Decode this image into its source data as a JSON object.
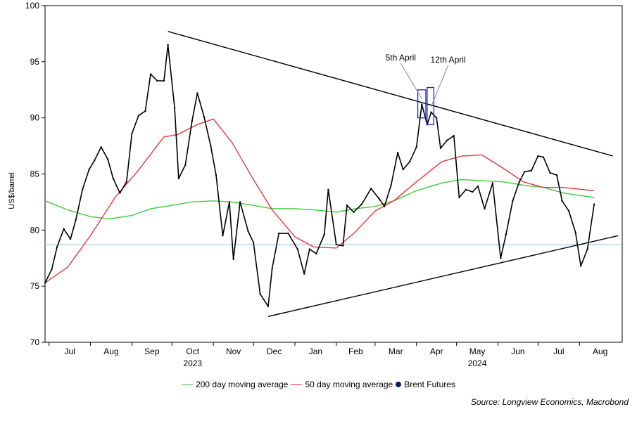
{
  "chart_data": {
    "type": "line",
    "ylabel": "US$/barrel",
    "ylim": [
      70,
      100
    ],
    "yticks": [
      70,
      75,
      80,
      85,
      90,
      95,
      100
    ],
    "x_range": [
      "2023-06-28",
      "2024-09-02"
    ],
    "month_ticks": [
      {
        "label": "Jul",
        "date": "2023-07-01"
      },
      {
        "label": "Aug",
        "date": "2023-08-01"
      },
      {
        "label": "Sep",
        "date": "2023-09-01"
      },
      {
        "label": "Oct",
        "date": "2023-10-01"
      },
      {
        "label": "Nov",
        "date": "2023-11-01"
      },
      {
        "label": "Dec",
        "date": "2023-12-01"
      },
      {
        "label": "Jan",
        "date": "2024-01-01"
      },
      {
        "label": "Feb",
        "date": "2024-02-01"
      },
      {
        "label": "Mar",
        "date": "2024-03-01"
      },
      {
        "label": "Apr",
        "date": "2024-04-01"
      },
      {
        "label": "May",
        "date": "2024-05-01"
      },
      {
        "label": "Jun",
        "date": "2024-06-01"
      },
      {
        "label": "Jul",
        "date": "2024-07-01"
      },
      {
        "label": "Aug",
        "date": "2024-08-01"
      }
    ],
    "year_labels": [
      {
        "label": "2023",
        "date": "2023-10-01"
      },
      {
        "label": "2024",
        "date": "2024-05-01"
      }
    ],
    "series": [
      {
        "name": "Brent Futures",
        "color": "#000000",
        "points": [
          [
            "2023-06-28",
            75.3
          ],
          [
            "2023-07-03",
            76.5
          ],
          [
            "2023-07-07",
            78.5
          ],
          [
            "2023-07-12",
            80.1
          ],
          [
            "2023-07-17",
            79.2
          ],
          [
            "2023-07-21",
            80.9
          ],
          [
            "2023-07-26",
            83.6
          ],
          [
            "2023-07-31",
            85.4
          ],
          [
            "2023-08-04",
            86.2
          ],
          [
            "2023-08-09",
            87.4
          ],
          [
            "2023-08-14",
            86.3
          ],
          [
            "2023-08-18",
            84.6
          ],
          [
            "2023-08-23",
            83.3
          ],
          [
            "2023-08-28",
            84.3
          ],
          [
            "2023-09-01",
            88.6
          ],
          [
            "2023-09-06",
            90.2
          ],
          [
            "2023-09-11",
            90.6
          ],
          [
            "2023-09-15",
            93.9
          ],
          [
            "2023-09-20",
            93.3
          ],
          [
            "2023-09-25",
            93.3
          ],
          [
            "2023-09-28",
            96.5
          ],
          [
            "2023-10-03",
            90.9
          ],
          [
            "2023-10-06",
            84.6
          ],
          [
            "2023-10-11",
            85.8
          ],
          [
            "2023-10-16",
            89.7
          ],
          [
            "2023-10-20",
            92.2
          ],
          [
            "2023-10-25",
            90.1
          ],
          [
            "2023-10-30",
            87.5
          ],
          [
            "2023-11-03",
            84.9
          ],
          [
            "2023-11-08",
            79.5
          ],
          [
            "2023-11-13",
            82.5
          ],
          [
            "2023-11-16",
            77.4
          ],
          [
            "2023-11-21",
            82.5
          ],
          [
            "2023-11-27",
            79.9
          ],
          [
            "2023-12-01",
            78.9
          ],
          [
            "2023-12-06",
            74.3
          ],
          [
            "2023-12-12",
            73.2
          ],
          [
            "2023-12-15",
            76.6
          ],
          [
            "2023-12-20",
            79.7
          ],
          [
            "2023-12-27",
            79.7
          ],
          [
            "2024-01-03",
            78.3
          ],
          [
            "2024-01-08",
            76.1
          ],
          [
            "2024-01-12",
            78.3
          ],
          [
            "2024-01-17",
            77.9
          ],
          [
            "2024-01-23",
            79.6
          ],
          [
            "2024-01-26",
            83.6
          ],
          [
            "2024-02-01",
            78.7
          ],
          [
            "2024-02-06",
            78.6
          ],
          [
            "2024-02-09",
            82.2
          ],
          [
            "2024-02-14",
            81.6
          ],
          [
            "2024-02-20",
            82.3
          ],
          [
            "2024-02-27",
            83.7
          ],
          [
            "2024-03-04",
            82.8
          ],
          [
            "2024-03-08",
            82.1
          ],
          [
            "2024-03-13",
            84.0
          ],
          [
            "2024-03-18",
            86.9
          ],
          [
            "2024-03-22",
            85.4
          ],
          [
            "2024-03-27",
            86.1
          ],
          [
            "2024-04-01",
            87.4
          ],
          [
            "2024-04-05",
            91.2
          ],
          [
            "2024-04-09",
            89.4
          ],
          [
            "2024-04-12",
            90.5
          ],
          [
            "2024-04-16",
            90.0
          ],
          [
            "2024-04-19",
            87.3
          ],
          [
            "2024-04-24",
            88.0
          ],
          [
            "2024-04-29",
            88.4
          ],
          [
            "2024-05-03",
            82.9
          ],
          [
            "2024-05-08",
            83.6
          ],
          [
            "2024-05-13",
            83.4
          ],
          [
            "2024-05-17",
            83.9
          ],
          [
            "2024-05-22",
            81.9
          ],
          [
            "2024-05-28",
            84.2
          ],
          [
            "2024-06-03",
            77.5
          ],
          [
            "2024-06-07",
            79.6
          ],
          [
            "2024-06-12",
            82.6
          ],
          [
            "2024-06-17",
            84.3
          ],
          [
            "2024-06-21",
            85.2
          ],
          [
            "2024-06-26",
            85.3
          ],
          [
            "2024-07-01",
            86.6
          ],
          [
            "2024-07-05",
            86.5
          ],
          [
            "2024-07-10",
            85.1
          ],
          [
            "2024-07-15",
            84.9
          ],
          [
            "2024-07-19",
            82.6
          ],
          [
            "2024-07-24",
            81.7
          ],
          [
            "2024-07-29",
            79.8
          ],
          [
            "2024-08-02",
            76.8
          ],
          [
            "2024-08-07",
            78.3
          ],
          [
            "2024-08-12",
            82.3
          ]
        ]
      },
      {
        "name": "50 day moving average",
        "color": "#e8383a",
        "points": [
          [
            "2023-06-28",
            75.3
          ],
          [
            "2023-07-15",
            76.7
          ],
          [
            "2023-08-01",
            79.5
          ],
          [
            "2023-08-20",
            83.0
          ],
          [
            "2023-09-05",
            85.2
          ],
          [
            "2023-09-25",
            88.3
          ],
          [
            "2023-10-05",
            88.5
          ],
          [
            "2023-10-20",
            89.4
          ],
          [
            "2023-11-01",
            89.9
          ],
          [
            "2023-11-15",
            87.8
          ],
          [
            "2023-12-01",
            84.5
          ],
          [
            "2023-12-15",
            81.8
          ],
          [
            "2024-01-01",
            79.4
          ],
          [
            "2024-01-15",
            78.5
          ],
          [
            "2024-02-01",
            78.4
          ],
          [
            "2024-02-15",
            79.8
          ],
          [
            "2024-03-01",
            81.7
          ],
          [
            "2024-03-15",
            82.6
          ],
          [
            "2024-04-01",
            84.3
          ],
          [
            "2024-04-20",
            86.1
          ],
          [
            "2024-05-05",
            86.6
          ],
          [
            "2024-05-20",
            86.7
          ],
          [
            "2024-06-05",
            85.5
          ],
          [
            "2024-06-20",
            84.3
          ],
          [
            "2024-07-05",
            83.8
          ],
          [
            "2024-07-20",
            83.8
          ],
          [
            "2024-08-12",
            83.5
          ]
        ]
      },
      {
        "name": "200 day moving average",
        "color": "#3ccc3c",
        "points": [
          [
            "2023-06-28",
            82.6
          ],
          [
            "2023-07-15",
            81.8
          ],
          [
            "2023-08-01",
            81.2
          ],
          [
            "2023-08-15",
            81.0
          ],
          [
            "2023-09-01",
            81.3
          ],
          [
            "2023-09-15",
            81.9
          ],
          [
            "2023-10-01",
            82.2
          ],
          [
            "2023-10-15",
            82.5
          ],
          [
            "2023-11-01",
            82.6
          ],
          [
            "2023-11-15",
            82.5
          ],
          [
            "2023-12-01",
            82.2
          ],
          [
            "2023-12-15",
            81.9
          ],
          [
            "2024-01-01",
            81.9
          ],
          [
            "2024-01-15",
            81.8
          ],
          [
            "2024-02-01",
            81.6
          ],
          [
            "2024-02-15",
            81.9
          ],
          [
            "2024-03-01",
            82.1
          ],
          [
            "2024-03-15",
            82.6
          ],
          [
            "2024-04-01",
            83.5
          ],
          [
            "2024-04-20",
            84.2
          ],
          [
            "2024-05-05",
            84.5
          ],
          [
            "2024-05-20",
            84.4
          ],
          [
            "2024-06-05",
            84.3
          ],
          [
            "2024-06-20",
            84.0
          ],
          [
            "2024-07-05",
            83.8
          ],
          [
            "2024-07-20",
            83.3
          ],
          [
            "2024-08-12",
            82.9
          ]
        ]
      }
    ],
    "trendlines": [
      {
        "name": "upper",
        "from": [
          "2023-09-28",
          97.7
        ],
        "to": [
          "2024-08-26",
          86.6
        ],
        "color": "#000000"
      },
      {
        "name": "lower",
        "from": [
          "2023-12-12",
          72.3
        ],
        "to": [
          "2024-08-30",
          79.5
        ],
        "color": "#000000"
      }
    ],
    "horizontal_lines": [
      {
        "y": 78.7,
        "color": "#8cc3e0"
      }
    ],
    "annotations": [
      {
        "text": "5th April",
        "target": [
          "2024-04-05",
          91.2
        ]
      },
      {
        "text": "12th April",
        "target": [
          "2024-04-12",
          90.5
        ]
      }
    ],
    "highlight_boxes": [
      {
        "from_date": "2024-04-02",
        "to_date": "2024-04-08",
        "y_low": 90.0,
        "y_high": 92.5
      },
      {
        "from_date": "2024-04-09",
        "to_date": "2024-04-14",
        "y_low": 89.4,
        "y_high": 92.7
      }
    ],
    "legend_placement": "bottom"
  },
  "legend": {
    "ma200": {
      "label": "200 day moving average",
      "color": "#3ccc3c"
    },
    "ma50": {
      "label": "50 day moving average",
      "color": "#e8383a"
    },
    "brent": {
      "label": "Brent Futures",
      "color": "#0c1c5e"
    }
  },
  "source": "Source: Longview Economics, Macrobond"
}
